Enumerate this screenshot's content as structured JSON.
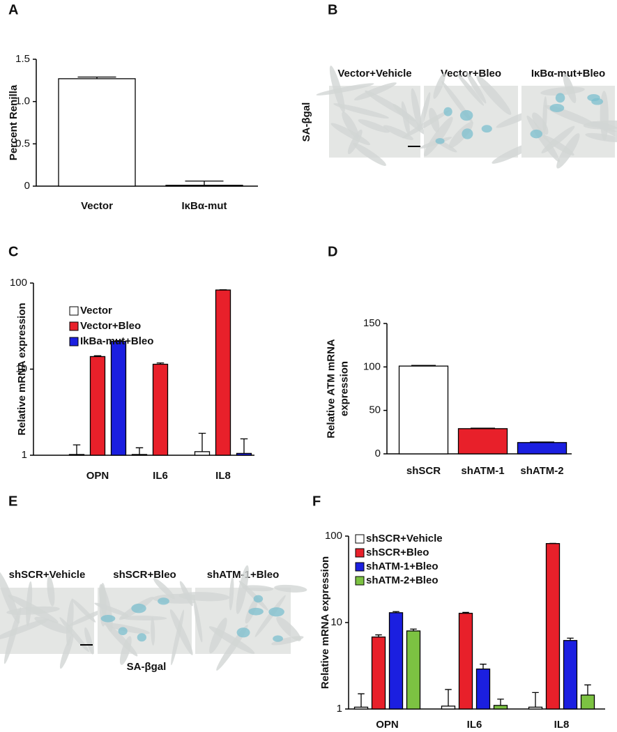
{
  "chart_data": [
    {
      "panel": "A",
      "type": "bar",
      "ylabel": [
        "Percent Renilla"
      ],
      "categories": [
        "Vector",
        "IκBα-mut"
      ],
      "values": [
        1.27,
        0.01
      ],
      "errors": [
        0.02,
        0.05
      ],
      "colors": [
        "#ffffff",
        "#ffffff"
      ],
      "ylim": [
        0,
        1.5
      ],
      "yticks": [
        0,
        0.5,
        {
          "value": 1,
          "label": "1.0"
        },
        1.5
      ]
    },
    {
      "panel": "C",
      "type": "bar",
      "log_scale": true,
      "ylabel": [
        "Relative mRNA expression"
      ],
      "categories": [
        "OPN",
        "IL6",
        "IL8"
      ],
      "series": [
        {
          "name": "Vector",
          "color": "#ffffff",
          "values": [
            1.02,
            1.02,
            1.1
          ],
          "errors": [
            0.3,
            0.2,
            0.7
          ]
        },
        {
          "name": "Vector+Bleo",
          "color": "#e8202a",
          "values": [
            14,
            11.4,
            83
          ],
          "errors": [
            0.3,
            0.4,
            0.5
          ]
        },
        {
          "name": "IkBa-mut+Bleo",
          "color": "#1b1fe0",
          "values": [
            21,
            null,
            1.05
          ],
          "errors": [
            0.4,
            null,
            0.5
          ]
        }
      ],
      "ylim": [
        1,
        100
      ],
      "yticks": [
        1,
        10,
        100
      ]
    },
    {
      "panel": "D",
      "type": "bar",
      "ylabel": [
        "Relative ATM mRNA",
        "expression"
      ],
      "categories": [
        "shSCR",
        "shATM-1",
        "shATM-2"
      ],
      "values": [
        101,
        29,
        13
      ],
      "errors": [
        0.8,
        0.6,
        0.6
      ],
      "colors": [
        "#ffffff",
        "#e8202a",
        "#1b1fe0"
      ],
      "ylim": [
        0,
        150
      ],
      "yticks": [
        0,
        50,
        100,
        150
      ]
    },
    {
      "panel": "F",
      "type": "bar",
      "log_scale": true,
      "ylabel": [
        "Relative mRNA expression"
      ],
      "categories": [
        "OPN",
        "IL6",
        "IL8"
      ],
      "series": [
        {
          "name": "shSCR+Vehicle",
          "color": "#ffffff",
          "values": [
            1.05,
            1.08,
            1.05
          ],
          "errors": [
            0.45,
            0.6,
            0.5
          ]
        },
        {
          "name": "shSCR+Bleo",
          "color": "#e8202a",
          "values": [
            6.8,
            12.8,
            82
          ],
          "errors": [
            0.4,
            0.3,
            0.5
          ]
        },
        {
          "name": "shATM-1+Bleo",
          "color": "#1b1fe0",
          "values": [
            13,
            2.9,
            6.2
          ],
          "errors": [
            0.4,
            0.4,
            0.4
          ]
        },
        {
          "name": "shATM-2+Bleo",
          "color": "#7cc242",
          "values": [
            8,
            1.1,
            1.45
          ],
          "errors": [
            0.4,
            0.2,
            0.45
          ]
        }
      ],
      "ylim": [
        1,
        100
      ],
      "yticks": [
        1,
        10,
        100
      ]
    }
  ],
  "images": [
    {
      "panel": "B",
      "captions": [
        "Vector+Vehicle",
        "Vector+Bleo",
        "IκBα-mut+Bleo"
      ],
      "stain": "SA-βgal"
    },
    {
      "panel": "E",
      "captions": [
        "shSCR+Vehicle",
        "shSCR+Bleo",
        "shATM-1+Bleo"
      ],
      "stain": "SA-βgal"
    }
  ]
}
